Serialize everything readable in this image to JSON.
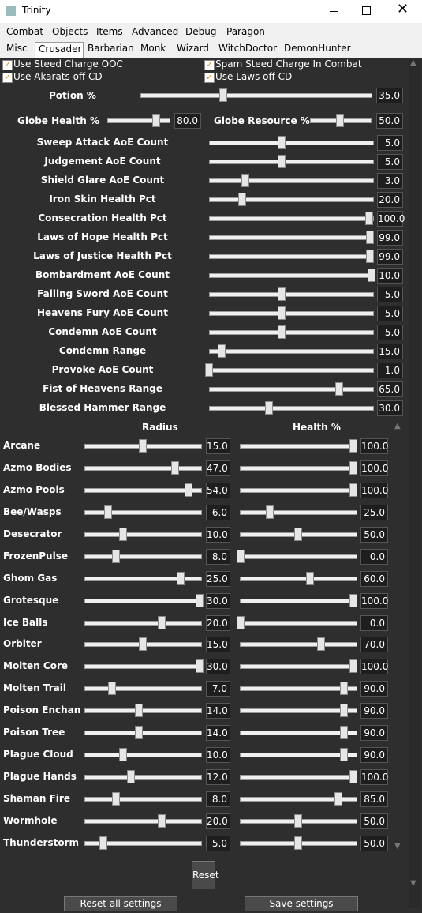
{
  "window": {
    "title": "Trinity"
  },
  "menu": [
    "Combat",
    "Objects",
    "Items",
    "Advanced",
    "Debug",
    "Paragon"
  ],
  "tabs": {
    "items": [
      "Misc",
      "Crusader",
      "Barbarian",
      "Monk",
      "Wizard",
      "WitchDoctor",
      "DemonHunter"
    ],
    "selected": 1
  },
  "checkboxes": [
    {
      "label": "Use Steed Charge OOC",
      "checked": true
    },
    {
      "label": "Spam Steed Charge In Combat",
      "checked": true
    },
    {
      "label": "Use Akarats off CD",
      "checked": true
    },
    {
      "label": "Use Laws off CD",
      "checked": true
    }
  ],
  "potion": {
    "label": "Potion %",
    "value": "35.0"
  },
  "globes": [
    {
      "label": "Globe Health %",
      "value": "80.0"
    },
    {
      "label": "Globe Resource %",
      "value": "50.0"
    }
  ],
  "settings": [
    {
      "label": "Sweep Attack AoE Count",
      "value": "5.0"
    },
    {
      "label": "Judgement AoE Count",
      "value": "5.0"
    },
    {
      "label": "Shield Glare AoE Count",
      "value": "3.0"
    },
    {
      "label": "Iron Skin Health Pct",
      "value": "20.0"
    },
    {
      "label": "Consecration Health Pct",
      "value": "100.0"
    },
    {
      "label": "Laws of Hope Health Pct",
      "value": "99.0"
    },
    {
      "label": "Laws of Justice Health Pct",
      "value": "99.0"
    },
    {
      "label": "Bombardment AoE Count",
      "value": "10.0"
    },
    {
      "label": "Falling Sword AoE Count",
      "value": "5.0"
    },
    {
      "label": "Heavens Fury AoE Count",
      "value": "5.0"
    },
    {
      "label": "Condemn AoE Count",
      "value": "5.0"
    },
    {
      "label": "Condemn Range",
      "value": "15.0"
    },
    {
      "label": "Provoke AoE Count",
      "value": "1.0"
    },
    {
      "label": "Fist of Heavens Range",
      "value": "65.0"
    },
    {
      "label": "Blessed Hammer Range",
      "value": "30.0"
    }
  ],
  "avoidance": {
    "headers": [
      "Radius",
      "Health %"
    ],
    "rows": [
      {
        "name": "Arcane",
        "radius": "15.0",
        "health": "100.0"
      },
      {
        "name": "Azmo Bodies",
        "radius": "47.0",
        "health": "100.0"
      },
      {
        "name": "Azmo Pools",
        "radius": "54.0",
        "health": "100.0"
      },
      {
        "name": "Bee/Wasps",
        "radius": "6.0",
        "health": "25.0"
      },
      {
        "name": "Desecrator",
        "radius": "10.0",
        "health": "50.0"
      },
      {
        "name": "FrozenPulse",
        "radius": "8.0",
        "health": "0.0"
      },
      {
        "name": "Ghom Gas",
        "radius": "25.0",
        "health": "60.0"
      },
      {
        "name": "Grotesque",
        "radius": "30.0",
        "health": "100.0"
      },
      {
        "name": "Ice Balls",
        "radius": "20.0",
        "health": "0.0"
      },
      {
        "name": "Orbiter",
        "radius": "15.0",
        "health": "70.0"
      },
      {
        "name": "Molten Core",
        "radius": "30.0",
        "health": "100.0"
      },
      {
        "name": "Molten Trail",
        "radius": "7.0",
        "health": "90.0"
      },
      {
        "name": "Poison Enchanted",
        "radius": "14.0",
        "health": "90.0"
      },
      {
        "name": "Poison Tree",
        "radius": "14.0",
        "health": "90.0"
      },
      {
        "name": "Plague Cloud",
        "radius": "10.0",
        "health": "90.0"
      },
      {
        "name": "Plague Hands",
        "radius": "12.0",
        "health": "100.0"
      },
      {
        "name": "Shaman Fire",
        "radius": "8.0",
        "health": "85.0"
      },
      {
        "name": "Wormhole",
        "radius": "20.0",
        "health": "50.0"
      },
      {
        "name": "Thunderstorm",
        "radius": "5.0",
        "health": "50.0"
      }
    ]
  },
  "buttons": {
    "reset": "Reset",
    "reset_all": "Reset all settings",
    "save": "Save settings"
  }
}
